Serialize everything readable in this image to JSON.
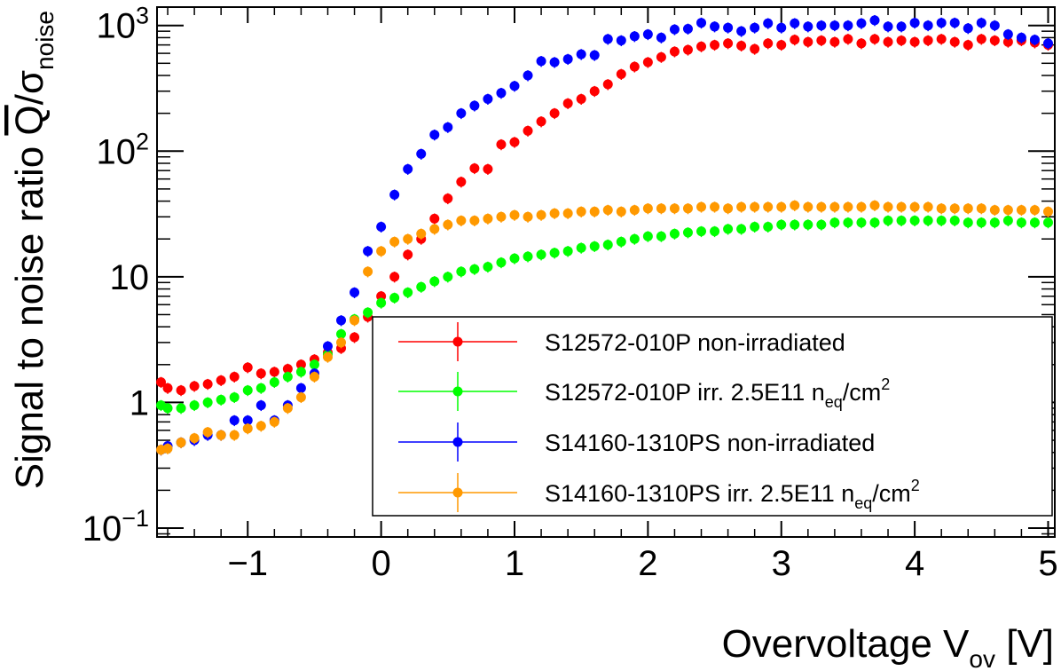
{
  "chart_data": {
    "type": "scatter",
    "title": "",
    "xlabel": "Overvoltage V",
    "xlabel_sub": "ov",
    "xlabel_unit": "[V]",
    "ylabel": "Signal to noise ratio",
    "ylabel_symbol": "Q",
    "ylabel_sigma": "σ",
    "ylabel_sub": "noise",
    "yscale": "log",
    "xlim": [
      -1.68,
      5.05
    ],
    "ylim": [
      0.085,
      1400
    ],
    "x_ticks": [
      {
        "value": -1,
        "label": "−1"
      },
      {
        "value": 0,
        "label": "0"
      },
      {
        "value": 1,
        "label": "1"
      },
      {
        "value": 2,
        "label": "2"
      },
      {
        "value": 3,
        "label": "3"
      },
      {
        "value": 4,
        "label": "4"
      },
      {
        "value": 5,
        "label": "5"
      }
    ],
    "y_ticks": [
      {
        "value": 0.1,
        "base": "10",
        "exp": "−1"
      },
      {
        "value": 1,
        "base": "1",
        "exp": ""
      },
      {
        "value": 10,
        "base": "10",
        "exp": ""
      },
      {
        "value": 100,
        "base": "10",
        "exp": "2"
      },
      {
        "value": 1000,
        "base": "10",
        "exp": "3"
      }
    ],
    "legend_position": "bottom-right",
    "series": [
      {
        "name": "S12572-010P non-irradiated",
        "legend_main": "S12572-010P non-irradiated",
        "legend_n": "",
        "legend_sub": "",
        "legend_unit": "",
        "legend_sup": "",
        "color": "#ff0000",
        "x": [
          -1.65,
          -1.6,
          -1.5,
          -1.4,
          -1.3,
          -1.2,
          -1.1,
          -1.0,
          -0.9,
          -0.8,
          -0.7,
          -0.6,
          -0.5,
          -0.4,
          -0.3,
          -0.2,
          -0.1,
          0.0,
          0.1,
          0.2,
          0.3,
          0.4,
          0.5,
          0.6,
          0.7,
          0.8,
          0.9,
          1.0,
          1.1,
          1.2,
          1.3,
          1.4,
          1.5,
          1.6,
          1.7,
          1.8,
          1.9,
          2.0,
          2.1,
          2.2,
          2.3,
          2.4,
          2.5,
          2.6,
          2.7,
          2.8,
          2.9,
          3.0,
          3.1,
          3.2,
          3.3,
          3.4,
          3.5,
          3.6,
          3.7,
          3.8,
          3.9,
          4.0,
          4.1,
          4.2,
          4.3,
          4.4,
          4.5,
          4.6,
          4.7,
          4.8,
          4.9,
          5.0
        ],
        "y": [
          1.45,
          1.3,
          1.25,
          1.35,
          1.4,
          1.5,
          1.6,
          1.9,
          1.7,
          1.75,
          1.85,
          2.0,
          2.2,
          2.5,
          2.7,
          3.3,
          4.8,
          7.0,
          10,
          15,
          20,
          29,
          42,
          57,
          73,
          72,
          113,
          118,
          145,
          172,
          200,
          240,
          260,
          300,
          340,
          410,
          470,
          510,
          560,
          620,
          640,
          680,
          700,
          720,
          690,
          650,
          720,
          700,
          770,
          740,
          760,
          740,
          780,
          720,
          780,
          740,
          760,
          740,
          760,
          780,
          740,
          700,
          780,
          760,
          740,
          760,
          730,
          700
        ],
        "yerr_frac": 0.1
      },
      {
        "name": "S12572-010P irr. 2.5E11 neq/cm2",
        "legend_main": "S12572-010P irr. 2.5E11 ",
        "legend_n": "n",
        "legend_sub": "eq",
        "legend_unit": "/cm",
        "legend_sup": "2",
        "color": "#00ff00",
        "x": [
          -1.65,
          -1.6,
          -1.5,
          -1.4,
          -1.3,
          -1.2,
          -1.1,
          -1.0,
          -0.9,
          -0.8,
          -0.7,
          -0.6,
          -0.5,
          -0.4,
          -0.3,
          -0.2,
          -0.1,
          0.0,
          0.1,
          0.2,
          0.3,
          0.4,
          0.5,
          0.6,
          0.7,
          0.8,
          0.9,
          1.0,
          1.1,
          1.2,
          1.3,
          1.4,
          1.5,
          1.6,
          1.7,
          1.8,
          1.9,
          2.0,
          2.1,
          2.2,
          2.3,
          2.4,
          2.5,
          2.6,
          2.7,
          2.8,
          2.9,
          3.0,
          3.1,
          3.2,
          3.3,
          3.4,
          3.5,
          3.6,
          3.7,
          3.8,
          3.9,
          4.0,
          4.1,
          4.2,
          4.3,
          4.4,
          4.5,
          4.6,
          4.7,
          4.8,
          4.9,
          5.0
        ],
        "y": [
          0.95,
          0.9,
          0.9,
          0.95,
          1.0,
          1.05,
          1.1,
          1.25,
          1.3,
          1.45,
          1.6,
          1.75,
          2.0,
          2.4,
          3.5,
          4.6,
          5.2,
          6.2,
          6.8,
          7.5,
          8.3,
          9.2,
          10,
          11,
          11.5,
          12,
          13,
          14,
          14.5,
          15,
          15.5,
          16,
          17,
          17.5,
          18,
          19,
          20,
          21,
          21,
          22,
          22.5,
          23,
          23,
          24,
          24,
          25,
          25,
          26,
          26,
          26,
          26,
          27,
          27,
          27,
          27,
          28,
          28,
          28,
          28,
          28,
          28,
          27,
          27,
          27,
          28,
          27,
          27,
          27
        ],
        "yerr_frac": 0.1
      },
      {
        "name": "S14160-1310PS non-irradiated",
        "legend_main": "S14160-1310PS non-irradiated",
        "legend_n": "",
        "legend_sub": "",
        "legend_unit": "",
        "legend_sup": "",
        "color": "#0000ff",
        "x": [
          -1.65,
          -1.6,
          -1.5,
          -1.4,
          -1.3,
          -1.2,
          -1.1,
          -1.0,
          -0.9,
          -0.8,
          -0.7,
          -0.6,
          -0.5,
          -0.4,
          -0.3,
          -0.2,
          -0.1,
          0.0,
          0.1,
          0.2,
          0.3,
          0.4,
          0.5,
          0.6,
          0.7,
          0.8,
          0.9,
          1.0,
          1.1,
          1.2,
          1.3,
          1.4,
          1.5,
          1.6,
          1.7,
          1.8,
          1.9,
          2.0,
          2.1,
          2.2,
          2.3,
          2.4,
          2.5,
          2.6,
          2.7,
          2.8,
          2.9,
          3.0,
          3.1,
          3.2,
          3.3,
          3.4,
          3.5,
          3.6,
          3.7,
          3.8,
          3.9,
          4.0,
          4.1,
          4.2,
          4.3,
          4.4,
          4.5,
          4.6,
          4.7,
          4.8,
          4.9,
          5.0
        ],
        "y": [
          0.42,
          0.45,
          0.48,
          0.5,
          0.55,
          0.55,
          0.72,
          0.72,
          0.95,
          0.72,
          0.95,
          1.3,
          1.7,
          2.8,
          4.5,
          7.5,
          16,
          25,
          45,
          72,
          95,
          135,
          155,
          200,
          230,
          260,
          290,
          330,
          400,
          520,
          510,
          540,
          590,
          580,
          780,
          760,
          820,
          850,
          800,
          930,
          940,
          1050,
          980,
          960,
          900,
          960,
          1040,
          960,
          1040,
          980,
          1000,
          1000,
          1000,
          1040,
          1100,
          980,
          980,
          1050,
          1000,
          1050,
          1050,
          950,
          1050,
          1000,
          850,
          800,
          770,
          720
        ],
        "yerr_frac": 0.1
      },
      {
        "name": "S14160-1310PS irr. 2.5E11 neq/cm2",
        "legend_main": "S14160-1310PS irr. 2.5E11 ",
        "legend_n": "n",
        "legend_sub": "eq",
        "legend_unit": "/cm",
        "legend_sup": "2",
        "color": "#ff9900",
        "x": [
          -1.65,
          -1.6,
          -1.5,
          -1.4,
          -1.3,
          -1.2,
          -1.1,
          -1.0,
          -0.9,
          -0.8,
          -0.7,
          -0.6,
          -0.5,
          -0.4,
          -0.3,
          -0.2,
          -0.1,
          0.0,
          0.1,
          0.2,
          0.3,
          0.4,
          0.5,
          0.6,
          0.7,
          0.8,
          0.9,
          1.0,
          1.1,
          1.2,
          1.3,
          1.4,
          1.5,
          1.6,
          1.7,
          1.8,
          1.9,
          2.0,
          2.1,
          2.2,
          2.3,
          2.4,
          2.5,
          2.6,
          2.7,
          2.8,
          2.9,
          3.0,
          3.1,
          3.2,
          3.3,
          3.4,
          3.5,
          3.6,
          3.7,
          3.8,
          3.9,
          4.0,
          4.1,
          4.2,
          4.3,
          4.4,
          4.5,
          4.6,
          4.7,
          4.8,
          4.9,
          5.0
        ],
        "y": [
          0.42,
          0.43,
          0.48,
          0.52,
          0.58,
          0.55,
          0.55,
          0.62,
          0.65,
          0.7,
          0.9,
          1.1,
          1.6,
          2.3,
          3.0,
          4.5,
          11,
          16,
          19,
          20,
          22,
          24,
          26,
          28,
          28,
          29,
          30,
          31,
          30,
          31,
          32,
          32,
          33,
          33,
          34,
          33,
          34,
          35,
          35,
          35,
          35,
          36,
          36,
          35,
          36,
          36,
          36,
          36,
          37,
          36,
          36,
          36,
          36,
          36,
          37,
          36,
          36,
          36,
          36,
          35,
          35,
          35,
          35,
          34,
          34,
          34,
          34,
          33
        ],
        "yerr_frac": 0.1
      }
    ]
  }
}
